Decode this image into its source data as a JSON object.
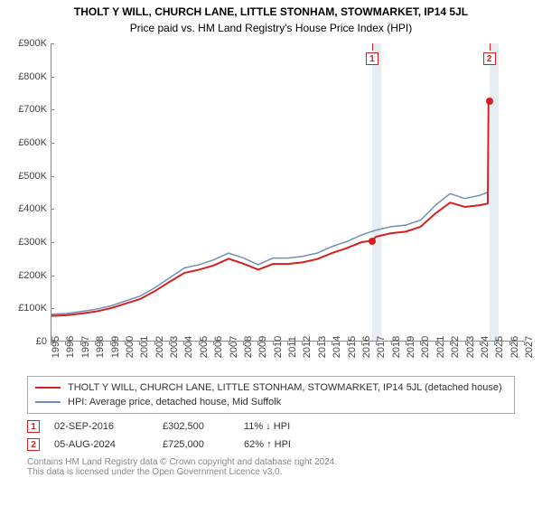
{
  "title_line1": "THOLT Y WILL, CHURCH LANE, LITTLE STONHAM, STOWMARKET, IP14 5JL",
  "title_line2": "Price paid vs. HM Land Registry's House Price Index (HPI)",
  "chart": {
    "type": "line",
    "background_color": "#ffffff",
    "plot_border_color": "#888888",
    "shade_color": "#e8edf4",
    "y": {
      "min": 0,
      "max": 900000,
      "step": 100000,
      "format_prefix": "£",
      "format_suffix": "K",
      "format_divisor": 1000,
      "tick_color": "#444444",
      "tick_fontsize": 11
    },
    "x": {
      "min": 1995,
      "max": 2027,
      "step": 1,
      "tick_color": "#444444",
      "tick_fontsize": 11
    },
    "series": [
      {
        "id": "hpi",
        "label": "HPI: Average price, detached house, Mid Suffolk",
        "color": "#6f8fb3",
        "width": 1.5,
        "points": [
          [
            1995,
            80000
          ],
          [
            1996,
            82000
          ],
          [
            1997,
            88000
          ],
          [
            1998,
            95000
          ],
          [
            1999,
            105000
          ],
          [
            2000,
            120000
          ],
          [
            2001,
            135000
          ],
          [
            2002,
            160000
          ],
          [
            2003,
            190000
          ],
          [
            2004,
            220000
          ],
          [
            2005,
            230000
          ],
          [
            2006,
            245000
          ],
          [
            2007,
            265000
          ],
          [
            2008,
            250000
          ],
          [
            2009,
            230000
          ],
          [
            2010,
            250000
          ],
          [
            2011,
            250000
          ],
          [
            2012,
            255000
          ],
          [
            2013,
            265000
          ],
          [
            2014,
            285000
          ],
          [
            2015,
            300000
          ],
          [
            2016,
            320000
          ],
          [
            2017,
            335000
          ],
          [
            2018,
            345000
          ],
          [
            2019,
            350000
          ],
          [
            2020,
            365000
          ],
          [
            2021,
            410000
          ],
          [
            2022,
            445000
          ],
          [
            2023,
            430000
          ],
          [
            2024,
            440000
          ],
          [
            2024.6,
            450000
          ]
        ]
      },
      {
        "id": "property",
        "label": "THOLT Y WILL, CHURCH LANE, LITTLE STONHAM, STOWMARKET, IP14 5JL (detached house)",
        "color": "#d81e1e",
        "width": 2,
        "points": [
          [
            1995,
            75000
          ],
          [
            1996,
            77000
          ],
          [
            1997,
            82000
          ],
          [
            1998,
            88000
          ],
          [
            1999,
            98000
          ],
          [
            2000,
            112000
          ],
          [
            2001,
            126000
          ],
          [
            2002,
            150000
          ],
          [
            2003,
            178000
          ],
          [
            2004,
            205000
          ],
          [
            2005,
            215000
          ],
          [
            2006,
            228000
          ],
          [
            2007,
            248000
          ],
          [
            2008,
            233000
          ],
          [
            2009,
            215000
          ],
          [
            2010,
            232000
          ],
          [
            2011,
            232000
          ],
          [
            2012,
            237000
          ],
          [
            2013,
            247000
          ],
          [
            2014,
            265000
          ],
          [
            2015,
            280000
          ],
          [
            2016,
            298000
          ],
          [
            2016.67,
            302500
          ],
          [
            2017,
            315000
          ],
          [
            2018,
            325000
          ],
          [
            2019,
            330000
          ],
          [
            2020,
            345000
          ],
          [
            2021,
            385000
          ],
          [
            2022,
            418000
          ],
          [
            2023,
            405000
          ],
          [
            2024,
            410000
          ],
          [
            2024.55,
            415000
          ],
          [
            2024.6,
            725000
          ]
        ]
      }
    ],
    "shaded_ranges": [
      [
        2016.67,
        2017.3
      ],
      [
        2024.6,
        2025.2
      ]
    ],
    "sale_markers": [
      {
        "id": 1,
        "x": 2016.67,
        "y": 302500,
        "color": "#d81e1e"
      },
      {
        "id": 2,
        "x": 2024.6,
        "y": 725000,
        "color": "#d81e1e"
      }
    ],
    "flags": [
      {
        "id": 1,
        "x": 2016.67,
        "color": "#d81e1e"
      },
      {
        "id": 2,
        "x": 2024.6,
        "color": "#d81e1e"
      }
    ]
  },
  "legend": {
    "items": [
      {
        "color": "#d81e1e",
        "width": 2,
        "label": "THOLT Y WILL, CHURCH LANE, LITTLE STONHAM, STOWMARKET, IP14 5JL (detached house)"
      },
      {
        "color": "#6f8fb3",
        "width": 1.5,
        "label": "HPI: Average price, detached house, Mid Suffolk"
      }
    ]
  },
  "sales": [
    {
      "num": "1",
      "date": "02-SEP-2016",
      "price": "£302,500",
      "delta": "11% ↓ HPI",
      "color": "#d81e1e"
    },
    {
      "num": "2",
      "date": "05-AUG-2024",
      "price": "£725,000",
      "delta": "62% ↑ HPI",
      "color": "#d81e1e"
    }
  ],
  "footer": {
    "line1": "Contains HM Land Registry data © Crown copyright and database right 2024.",
    "line2": "This data is licensed under the Open Government Licence v3.0."
  }
}
